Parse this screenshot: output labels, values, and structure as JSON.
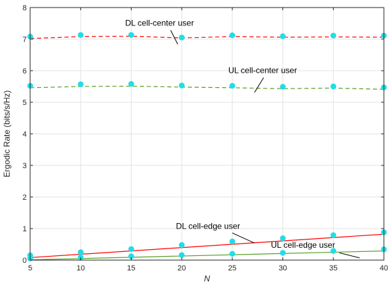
{
  "chart_data": {
    "type": "line",
    "xlabel": "N",
    "ylabel": "Ergodic Rate (bits/s/Hz)",
    "xlim": [
      5,
      40
    ],
    "ylim": [
      0,
      8
    ],
    "grid": true,
    "x_ticks": [
      "5",
      "10",
      "15",
      "20",
      "25",
      "30",
      "35",
      "40"
    ],
    "y_ticks": [
      "0",
      "1",
      "2",
      "3",
      "4",
      "5",
      "6",
      "7",
      "8"
    ],
    "x": [
      5,
      10,
      15,
      20,
      25,
      30,
      35,
      40
    ],
    "series": [
      {
        "name": "DL cell-center user",
        "color": "#ff0000",
        "style": "dashed",
        "line": [
          {
            "x": 5,
            "y": 7.02
          },
          {
            "x": 10,
            "y": 7.08
          },
          {
            "x": 15,
            "y": 7.09
          },
          {
            "x": 20,
            "y": 7.04
          },
          {
            "x": 25,
            "y": 7.08
          },
          {
            "x": 30,
            "y": 7.06
          },
          {
            "x": 35,
            "y": 7.07
          },
          {
            "x": 40,
            "y": 7.06
          }
        ],
        "markers": [
          7.08,
          7.13,
          7.13,
          7.05,
          7.12,
          7.09,
          7.11,
          7.11
        ]
      },
      {
        "name": "UL cell-center user",
        "color": "#5aa02c",
        "style": "dashed",
        "line": [
          {
            "x": 5,
            "y": 5.46
          },
          {
            "x": 10,
            "y": 5.5
          },
          {
            "x": 15,
            "y": 5.51
          },
          {
            "x": 20,
            "y": 5.48
          },
          {
            "x": 25,
            "y": 5.46
          },
          {
            "x": 30,
            "y": 5.43
          },
          {
            "x": 35,
            "y": 5.45
          },
          {
            "x": 40,
            "y": 5.41
          }
        ],
        "markers": [
          5.52,
          5.57,
          5.58,
          5.53,
          5.52,
          5.49,
          5.5,
          5.47
        ]
      },
      {
        "name": "DL cell-edge user",
        "color": "#ff0000",
        "style": "solid",
        "line": [
          {
            "x": 5,
            "y": 0.08
          },
          {
            "x": 40,
            "y": 0.82
          }
        ],
        "markers": [
          0.15,
          0.25,
          0.35,
          0.48,
          0.59,
          0.69,
          0.79,
          0.88
        ]
      },
      {
        "name": "UL cell-edge user",
        "color": "#5aa02c",
        "style": "solid",
        "line": [
          {
            "x": 5,
            "y": 0.01
          },
          {
            "x": 40,
            "y": 0.29
          }
        ],
        "markers": [
          0.05,
          0.09,
          0.12,
          0.16,
          0.2,
          0.23,
          0.29,
          0.34
        ]
      }
    ],
    "marker_color": "#22dde6",
    "annotations": [
      {
        "text": "DL cell-center user",
        "series": 0,
        "label_x": 17.8,
        "label_y": 7.42,
        "arrow_from": [
          18.9,
          7.28
        ],
        "arrow_to": [
          19.6,
          6.84
        ]
      },
      {
        "text": "UL cell-center user",
        "series": 1,
        "label_x": 28.0,
        "label_y": 5.92,
        "arrow_from": [
          28.1,
          5.78
        ],
        "arrow_to": [
          27.2,
          5.31
        ]
      },
      {
        "text": "DL cell-edge user",
        "series": 2,
        "label_x": 22.6,
        "label_y": 0.99,
        "arrow_from": [
          25.0,
          0.86
        ],
        "arrow_to": [
          27.2,
          0.54
        ]
      },
      {
        "text": "UL cell-edge user",
        "series": 3,
        "label_x": 32.0,
        "label_y": 0.39,
        "arrow_from": [
          35.6,
          0.23
        ],
        "arrow_to": [
          37.6,
          0.07
        ]
      }
    ]
  }
}
